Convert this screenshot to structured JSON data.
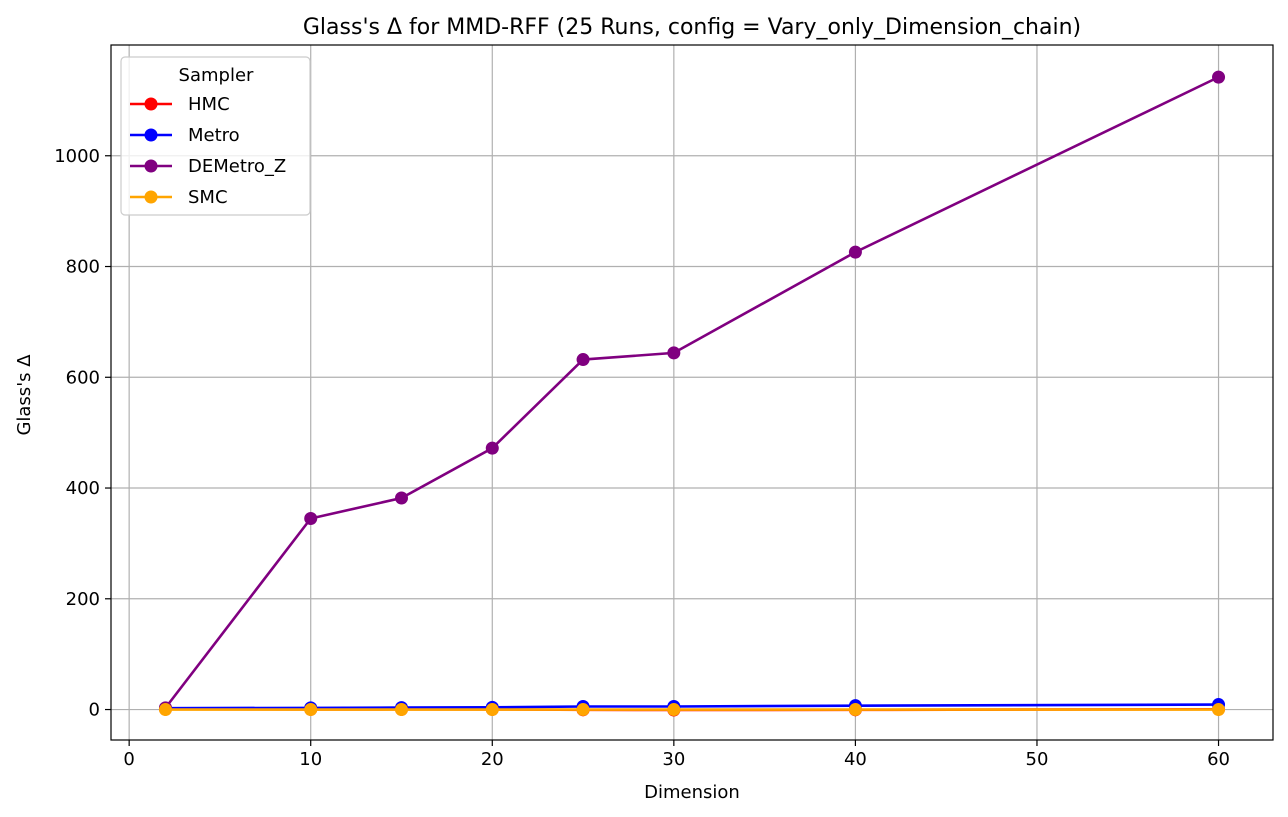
{
  "chart_data": {
    "type": "line",
    "title": "Glass's Δ for MMD-RFF (25 Runs, config = Vary_only_Dimension_chain)",
    "xlabel": "Dimension",
    "ylabel": "Glass's Δ",
    "xlim": [
      -1,
      63
    ],
    "ylim": [
      -55,
      1200
    ],
    "xticks": [
      0,
      10,
      20,
      30,
      40,
      50,
      60
    ],
    "yticks": [
      0,
      200,
      400,
      600,
      800,
      1000
    ],
    "grid": true,
    "x": [
      2,
      10,
      15,
      20,
      25,
      30,
      40,
      60
    ],
    "legend": {
      "title": "Sampler",
      "placement": "top-left"
    },
    "series": [
      {
        "name": "HMC",
        "color": "#ff0000",
        "values": [
          0.5,
          0.2,
          0.3,
          0.2,
          -0.5,
          -0.8,
          -0.5,
          0.5
        ]
      },
      {
        "name": "Metro",
        "color": "#0000ff",
        "values": [
          2.5,
          3.0,
          3.5,
          4.0,
          5.5,
          5.5,
          7.0,
          9.0
        ]
      },
      {
        "name": "DEMetro_Z",
        "color": "#800080",
        "values": [
          3,
          345,
          382,
          472,
          632,
          644,
          826,
          1142
        ]
      },
      {
        "name": "SMC",
        "color": "#ffa500",
        "values": [
          0,
          0,
          0,
          0,
          0,
          0,
          0,
          0
        ]
      }
    ]
  }
}
